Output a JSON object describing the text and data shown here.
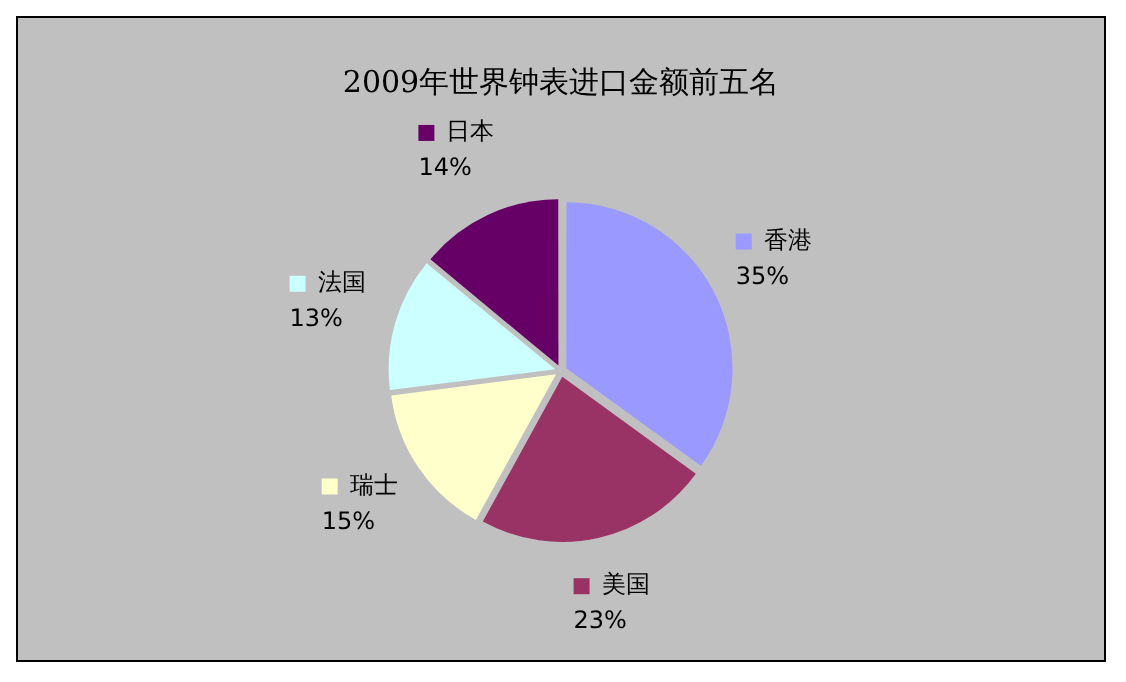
{
  "chart_data": {
    "type": "pie",
    "title": "2009年世界钟表进口金额前五名",
    "categories": [
      "香港",
      "美国",
      "瑞士",
      "法国",
      "日本"
    ],
    "values": [
      35,
      23,
      15,
      13,
      14
    ],
    "value_labels": [
      "35%",
      "23%",
      "15%",
      "13%",
      "14%"
    ],
    "colors": [
      "#9999ff",
      "#993366",
      "#ffffcc",
      "#ccffff",
      "#660066"
    ],
    "legend": "center"
  }
}
